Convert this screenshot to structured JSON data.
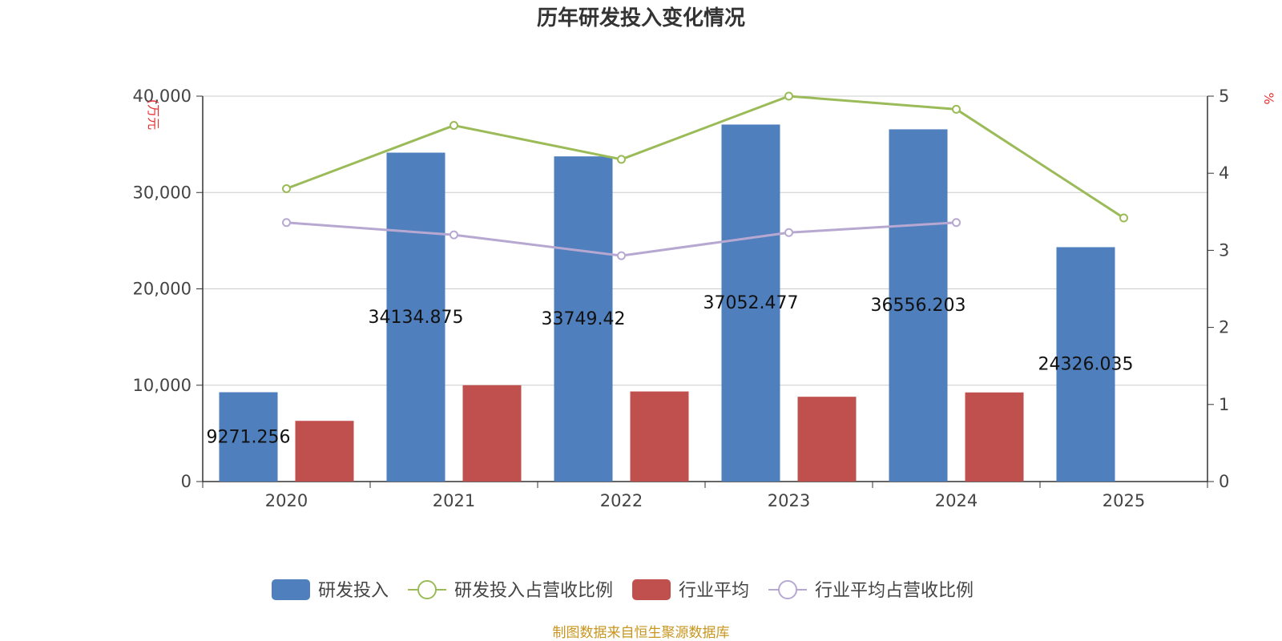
{
  "chart_data": {
    "type": "bar",
    "title": "历年研发投入变化情况",
    "categories": [
      "2020",
      "2021",
      "2022",
      "2023",
      "2024",
      "2025"
    ],
    "series": [
      {
        "name": "研发投入",
        "type": "bar",
        "axis": "left",
        "color": "#4f7fbd",
        "values": [
          9271.256,
          34134.875,
          33749.42,
          37052.477,
          36556.203,
          24326.035
        ],
        "labels": [
          "9271.256",
          "34134.875",
          "33749.42",
          "37052.477",
          "36556.203",
          "24326.035"
        ]
      },
      {
        "name": "研发投入占营收比例",
        "type": "line",
        "axis": "right",
        "color": "#9bbb59",
        "values": [
          3.8,
          4.62,
          4.18,
          5.0,
          4.83,
          3.42
        ]
      },
      {
        "name": "行业平均",
        "type": "bar",
        "axis": "left",
        "color": "#c0504d",
        "values": [
          6300,
          10000,
          9350,
          8800,
          9250,
          null
        ]
      },
      {
        "name": "行业平均占营收比例",
        "type": "line",
        "axis": "right",
        "color": "#b7a8d2",
        "values": [
          3.36,
          3.2,
          2.93,
          3.23,
          3.36,
          null
        ]
      }
    ],
    "y_left": {
      "unit_label": "(万元",
      "ylim": [
        0,
        40000
      ],
      "ticks": [
        "0",
        "10,000",
        "20,000",
        "30,000",
        "40,000"
      ]
    },
    "y_right": {
      "unit_label": "%",
      "ylim": [
        0,
        5
      ],
      "ticks": [
        "0",
        "1",
        "2",
        "3",
        "4",
        "5"
      ]
    },
    "grid": true,
    "legend_position": "bottom"
  },
  "source": "制图数据来自恒生聚源数据库"
}
